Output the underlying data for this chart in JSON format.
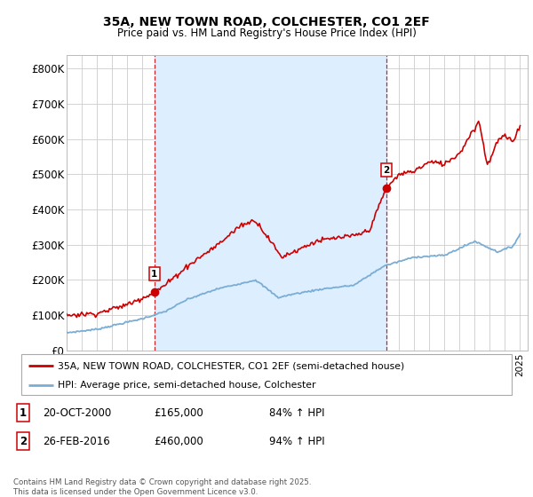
{
  "title": "35A, NEW TOWN ROAD, COLCHESTER, CO1 2EF",
  "subtitle": "Price paid vs. HM Land Registry's House Price Index (HPI)",
  "ylim": [
    0,
    840000
  ],
  "yticks": [
    0,
    100000,
    200000,
    300000,
    400000,
    500000,
    600000,
    700000,
    800000
  ],
  "ytick_labels": [
    "£0",
    "£100K",
    "£200K",
    "£300K",
    "£400K",
    "£500K",
    "£600K",
    "£700K",
    "£800K"
  ],
  "red_color": "#cc0000",
  "blue_color": "#7aadd4",
  "shade_color": "#ddeeff",
  "vline_color": "#cc0000",
  "grid_color": "#cccccc",
  "marker1_year": 2000.8,
  "marker1_price": 165000,
  "marker1_label": "1",
  "marker2_year": 2016.15,
  "marker2_price": 460000,
  "marker2_label": "2",
  "legend_red_label": "35A, NEW TOWN ROAD, COLCHESTER, CO1 2EF (semi-detached house)",
  "legend_blue_label": "HPI: Average price, semi-detached house, Colchester",
  "note1_num": "1",
  "note1_date": "20-OCT-2000",
  "note1_price": "£165,000",
  "note1_hpi": "84% ↑ HPI",
  "note2_num": "2",
  "note2_date": "26-FEB-2016",
  "note2_price": "£460,000",
  "note2_hpi": "94% ↑ HPI",
  "copyright": "Contains HM Land Registry data © Crown copyright and database right 2025.\nThis data is licensed under the Open Government Licence v3.0.",
  "xlim_left": 1995.0,
  "xlim_right": 2025.5
}
